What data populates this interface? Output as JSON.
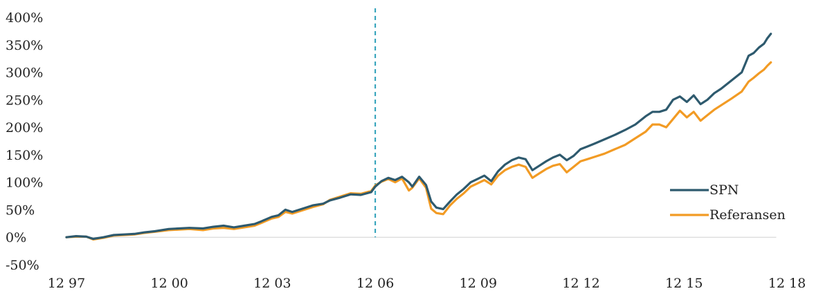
{
  "chart_data": {
    "type": "line",
    "title": "",
    "xlabel": "",
    "ylabel": "",
    "ylim": [
      -50,
      400
    ],
    "y_ticks": [
      400,
      350,
      300,
      250,
      200,
      150,
      100,
      50,
      0,
      -50
    ],
    "y_tick_labels": [
      "400%",
      "350%",
      "300%",
      "250%",
      "200%",
      "150%",
      "100%",
      "50%",
      "0%",
      "-50%"
    ],
    "x_range": [
      1997.92,
      2018.0
    ],
    "x_ticks": [
      1997.92,
      2000.92,
      2003.92,
      2006.92,
      2009.92,
      2012.92,
      2015.92,
      2018.92
    ],
    "x_tick_labels": [
      "12 97",
      "12 00",
      "12 03",
      "12 06",
      "12 09",
      "12 12",
      "12 15",
      "12 18"
    ],
    "vertical_marker": {
      "x": 2006.92,
      "color": "#2a9fb8",
      "style": "dashed"
    },
    "zero_line": true,
    "grid": false,
    "legend_position": "right",
    "series": [
      {
        "name": "SPN",
        "color": "#2e5a6e",
        "points": [
          [
            1997.92,
            0
          ],
          [
            1998.2,
            2
          ],
          [
            1998.5,
            1
          ],
          [
            1998.7,
            -3
          ],
          [
            1999.0,
            0
          ],
          [
            1999.3,
            4
          ],
          [
            1999.6,
            5
          ],
          [
            1999.9,
            6
          ],
          [
            2000.2,
            9
          ],
          [
            2000.5,
            11
          ],
          [
            2000.9,
            15
          ],
          [
            2001.2,
            16
          ],
          [
            2001.5,
            17
          ],
          [
            2001.9,
            16
          ],
          [
            2002.2,
            19
          ],
          [
            2002.5,
            21
          ],
          [
            2002.8,
            18
          ],
          [
            2003.1,
            21
          ],
          [
            2003.4,
            24
          ],
          [
            2003.6,
            29
          ],
          [
            2003.9,
            37
          ],
          [
            2004.1,
            40
          ],
          [
            2004.3,
            50
          ],
          [
            2004.5,
            46
          ],
          [
            2004.8,
            52
          ],
          [
            2005.1,
            58
          ],
          [
            2005.4,
            61
          ],
          [
            2005.6,
            67
          ],
          [
            2005.9,
            72
          ],
          [
            2006.2,
            78
          ],
          [
            2006.5,
            77
          ],
          [
            2006.8,
            82
          ],
          [
            2006.92,
            92
          ],
          [
            2007.1,
            102
          ],
          [
            2007.3,
            108
          ],
          [
            2007.5,
            104
          ],
          [
            2007.7,
            110
          ],
          [
            2007.9,
            100
          ],
          [
            2008.0,
            92
          ],
          [
            2008.2,
            110
          ],
          [
            2008.4,
            95
          ],
          [
            2008.55,
            65
          ],
          [
            2008.7,
            54
          ],
          [
            2008.9,
            51
          ],
          [
            2009.1,
            65
          ],
          [
            2009.3,
            78
          ],
          [
            2009.5,
            88
          ],
          [
            2009.7,
            100
          ],
          [
            2009.9,
            106
          ],
          [
            2010.1,
            112
          ],
          [
            2010.3,
            102
          ],
          [
            2010.5,
            120
          ],
          [
            2010.7,
            132
          ],
          [
            2010.9,
            140
          ],
          [
            2011.1,
            145
          ],
          [
            2011.3,
            142
          ],
          [
            2011.5,
            122
          ],
          [
            2011.7,
            130
          ],
          [
            2011.9,
            138
          ],
          [
            2012.1,
            145
          ],
          [
            2012.3,
            150
          ],
          [
            2012.5,
            140
          ],
          [
            2012.7,
            148
          ],
          [
            2012.9,
            160
          ],
          [
            2013.1,
            165
          ],
          [
            2013.3,
            170
          ],
          [
            2013.6,
            178
          ],
          [
            2013.9,
            186
          ],
          [
            2014.2,
            195
          ],
          [
            2014.5,
            205
          ],
          [
            2014.8,
            220
          ],
          [
            2015.0,
            228
          ],
          [
            2015.2,
            228
          ],
          [
            2015.4,
            232
          ],
          [
            2015.6,
            250
          ],
          [
            2015.8,
            256
          ],
          [
            2016.0,
            246
          ],
          [
            2016.2,
            258
          ],
          [
            2016.4,
            242
          ],
          [
            2016.6,
            250
          ],
          [
            2016.8,
            262
          ],
          [
            2017.0,
            270
          ],
          [
            2017.3,
            285
          ],
          [
            2017.6,
            300
          ],
          [
            2017.8,
            330
          ],
          [
            2017.95,
            335
          ],
          [
            2018.1,
            345
          ],
          [
            2018.25,
            352
          ],
          [
            2018.35,
            362
          ],
          [
            2018.45,
            370
          ]
        ]
      },
      {
        "name": "Referansen",
        "color": "#f29b24",
        "points": [
          [
            1997.92,
            0
          ],
          [
            1998.2,
            1
          ],
          [
            1998.5,
            1
          ],
          [
            1998.7,
            -4
          ],
          [
            1999.0,
            -1
          ],
          [
            1999.3,
            3
          ],
          [
            1999.6,
            4
          ],
          [
            1999.9,
            5
          ],
          [
            2000.2,
            8
          ],
          [
            2000.5,
            10
          ],
          [
            2000.9,
            13
          ],
          [
            2001.2,
            14
          ],
          [
            2001.5,
            15
          ],
          [
            2001.9,
            13
          ],
          [
            2002.2,
            16
          ],
          [
            2002.5,
            17
          ],
          [
            2002.8,
            15
          ],
          [
            2003.1,
            18
          ],
          [
            2003.4,
            21
          ],
          [
            2003.6,
            26
          ],
          [
            2003.9,
            34
          ],
          [
            2004.1,
            37
          ],
          [
            2004.3,
            46
          ],
          [
            2004.5,
            43
          ],
          [
            2004.8,
            49
          ],
          [
            2005.1,
            55
          ],
          [
            2005.4,
            60
          ],
          [
            2005.6,
            68
          ],
          [
            2005.9,
            74
          ],
          [
            2006.2,
            80
          ],
          [
            2006.5,
            79
          ],
          [
            2006.8,
            84
          ],
          [
            2006.92,
            94
          ],
          [
            2007.1,
            101
          ],
          [
            2007.3,
            106
          ],
          [
            2007.5,
            100
          ],
          [
            2007.7,
            107
          ],
          [
            2007.9,
            85
          ],
          [
            2008.0,
            90
          ],
          [
            2008.2,
            107
          ],
          [
            2008.4,
            90
          ],
          [
            2008.55,
            52
          ],
          [
            2008.7,
            44
          ],
          [
            2008.9,
            42
          ],
          [
            2009.1,
            58
          ],
          [
            2009.3,
            70
          ],
          [
            2009.5,
            80
          ],
          [
            2009.7,
            92
          ],
          [
            2009.9,
            98
          ],
          [
            2010.1,
            104
          ],
          [
            2010.3,
            96
          ],
          [
            2010.5,
            112
          ],
          [
            2010.7,
            122
          ],
          [
            2010.9,
            128
          ],
          [
            2011.1,
            132
          ],
          [
            2011.3,
            128
          ],
          [
            2011.5,
            108
          ],
          [
            2011.7,
            116
          ],
          [
            2011.9,
            124
          ],
          [
            2012.1,
            130
          ],
          [
            2012.3,
            133
          ],
          [
            2012.5,
            118
          ],
          [
            2012.7,
            128
          ],
          [
            2012.9,
            138
          ],
          [
            2013.1,
            142
          ],
          [
            2013.3,
            146
          ],
          [
            2013.6,
            152
          ],
          [
            2013.9,
            160
          ],
          [
            2014.2,
            168
          ],
          [
            2014.5,
            180
          ],
          [
            2014.8,
            192
          ],
          [
            2015.0,
            205
          ],
          [
            2015.2,
            205
          ],
          [
            2015.4,
            200
          ],
          [
            2015.6,
            215
          ],
          [
            2015.8,
            230
          ],
          [
            2016.0,
            218
          ],
          [
            2016.2,
            228
          ],
          [
            2016.4,
            212
          ],
          [
            2016.6,
            222
          ],
          [
            2016.8,
            232
          ],
          [
            2017.0,
            240
          ],
          [
            2017.3,
            252
          ],
          [
            2017.6,
            265
          ],
          [
            2017.8,
            283
          ],
          [
            2017.95,
            290
          ],
          [
            2018.1,
            298
          ],
          [
            2018.25,
            305
          ],
          [
            2018.35,
            312
          ],
          [
            2018.45,
            318
          ]
        ]
      }
    ]
  }
}
